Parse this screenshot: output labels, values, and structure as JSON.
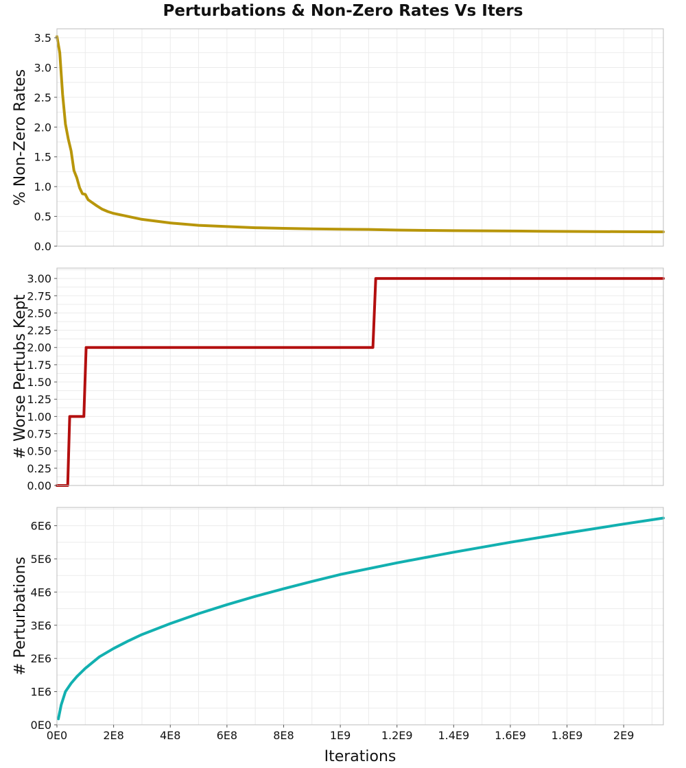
{
  "chart_data": {
    "type": "line",
    "title": "Perturbations & Non-Zero Rates Vs Iters",
    "xlabel": "Iterations",
    "xlim": [
      0,
      2140000000
    ],
    "x_ticks": [
      {
        "v": 0,
        "label": "0E0"
      },
      {
        "v": 200000000,
        "label": "2E8"
      },
      {
        "v": 400000000,
        "label": "4E8"
      },
      {
        "v": 600000000,
        "label": "6E8"
      },
      {
        "v": 800000000,
        "label": "8E8"
      },
      {
        "v": 1000000000,
        "label": "1E9"
      },
      {
        "v": 1200000000,
        "label": "1.2E9"
      },
      {
        "v": 1400000000,
        "label": "1.4E9"
      },
      {
        "v": 1600000000,
        "label": "1.6E9"
      },
      {
        "v": 1800000000,
        "label": "1.8E9"
      },
      {
        "v": 2000000000,
        "label": "2E9"
      }
    ],
    "grid": true,
    "panels": [
      {
        "name": "non-zero-rates",
        "ylabel": "% Non-Zero Rates",
        "ylim": [
          0,
          3.65
        ],
        "color": "#b8960b",
        "y_ticks": [
          {
            "v": 0,
            "label": "0.0"
          },
          {
            "v": 0.5,
            "label": "0.5"
          },
          {
            "v": 1.0,
            "label": "1.0"
          },
          {
            "v": 1.5,
            "label": "1.5"
          },
          {
            "v": 2.0,
            "label": "2.0"
          },
          {
            "v": 2.5,
            "label": "2.5"
          },
          {
            "v": 3.0,
            "label": "3.0"
          },
          {
            "v": 3.5,
            "label": "3.5"
          }
        ],
        "x": [
          0,
          10000000,
          20000000,
          30000000,
          40000000,
          50000000,
          60000000,
          70000000,
          80000000,
          90000000,
          100000000,
          110000000,
          125000000,
          140000000,
          160000000,
          180000000,
          200000000,
          230000000,
          260000000,
          300000000,
          350000000,
          400000000,
          450000000,
          500000000,
          600000000,
          700000000,
          800000000,
          900000000,
          1000000000,
          1100000000,
          1200000000,
          1300000000,
          1400000000,
          1500000000,
          1600000000,
          1700000000,
          1800000000,
          1900000000,
          2000000000,
          2140000000
        ],
        "y": [
          3.52,
          3.25,
          2.55,
          2.05,
          1.8,
          1.6,
          1.27,
          1.15,
          0.98,
          0.88,
          0.87,
          0.78,
          0.73,
          0.68,
          0.62,
          0.58,
          0.55,
          0.52,
          0.49,
          0.45,
          0.42,
          0.39,
          0.37,
          0.35,
          0.33,
          0.31,
          0.3,
          0.29,
          0.285,
          0.28,
          0.27,
          0.265,
          0.26,
          0.258,
          0.255,
          0.25,
          0.248,
          0.245,
          0.243,
          0.24
        ]
      },
      {
        "name": "worse-pertubs-kept",
        "ylabel": "# Worse Pertubs Kept",
        "ylim": [
          0,
          3.15
        ],
        "color": "#b30f0f",
        "y_ticks": [
          {
            "v": 0,
            "label": "0.00"
          },
          {
            "v": 0.25,
            "label": "0.25"
          },
          {
            "v": 0.5,
            "label": "0.50"
          },
          {
            "v": 0.75,
            "label": "0.75"
          },
          {
            "v": 1.0,
            "label": "1.00"
          },
          {
            "v": 1.25,
            "label": "1.25"
          },
          {
            "v": 1.5,
            "label": "1.50"
          },
          {
            "v": 1.75,
            "label": "1.75"
          },
          {
            "v": 2.0,
            "label": "2.00"
          },
          {
            "v": 2.25,
            "label": "2.25"
          },
          {
            "v": 2.5,
            "label": "2.50"
          },
          {
            "v": 2.75,
            "label": "2.75"
          },
          {
            "v": 3.0,
            "label": "3.00"
          }
        ],
        "x": [
          0,
          38000000,
          45000000,
          95000000,
          103000000,
          1115000000,
          1125000000,
          2140000000
        ],
        "y": [
          0,
          0,
          1,
          1,
          2,
          2,
          3,
          3
        ]
      },
      {
        "name": "perturbations",
        "ylabel": "# Perturbations",
        "ylim": [
          0,
          6550000
        ],
        "color": "#12b0b0",
        "y_ticks": [
          {
            "v": 0,
            "label": "0E0"
          },
          {
            "v": 1000000,
            "label": "1E6"
          },
          {
            "v": 2000000,
            "label": "2E6"
          },
          {
            "v": 3000000,
            "label": "3E6"
          },
          {
            "v": 4000000,
            "label": "4E6"
          },
          {
            "v": 5000000,
            "label": "5E6"
          },
          {
            "v": 6000000,
            "label": "6E6"
          }
        ],
        "x": [
          5000000,
          15000000,
          30000000,
          50000000,
          70000000,
          100000000,
          150000000,
          200000000,
          250000000,
          300000000,
          400000000,
          500000000,
          600000000,
          700000000,
          800000000,
          900000000,
          1000000000,
          1200000000,
          1400000000,
          1600000000,
          1800000000,
          2000000000,
          2140000000
        ],
        "y": [
          180000,
          600000,
          1000000,
          1250000,
          1450000,
          1700000,
          2050000,
          2300000,
          2520000,
          2720000,
          3050000,
          3350000,
          3620000,
          3870000,
          4100000,
          4320000,
          4530000,
          4880000,
          5200000,
          5500000,
          5780000,
          6050000,
          6230000
        ]
      }
    ]
  }
}
